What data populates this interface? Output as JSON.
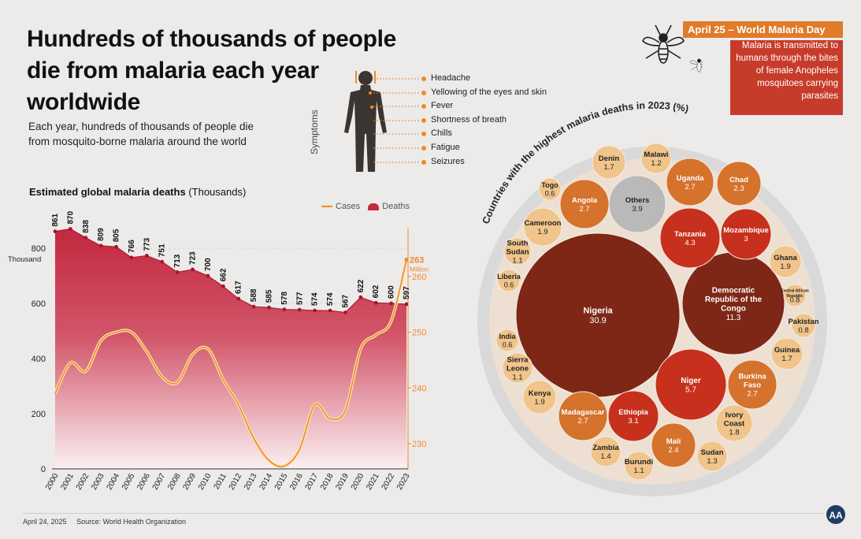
{
  "headline": "Hundreds of thousands of people die from malaria each year worldwide",
  "subhead": "Each year, hundreds of thousands of people die from mosquito-borne malaria around the world",
  "symptoms": {
    "title": "Symptoms",
    "items": [
      "Headache",
      "Yellowing of the eyes and skin",
      "Fever",
      "Shortness of breath",
      "Chills",
      "Fatigue",
      "Seizures"
    ]
  },
  "world_malaria_day": {
    "heading": "April 25 – World Malaria Day",
    "text": "Malaria is transmitted to humans through the bites of female Anopheles mosquitoes carrying parasites"
  },
  "footer": {
    "date": "April 24, 2025",
    "source": "Source: World Health Organization"
  },
  "logo_text": "AA",
  "colors": {
    "deaths": "#c3283f",
    "cases": "#ef8a2a",
    "bubble_dark": "#7e2716",
    "bubble_red": "#c7301d",
    "bubble_orange": "#d5722c",
    "bubble_light": "#f0c48a",
    "bubble_gray": "#b9b9b9",
    "box_red": "#c73b2a",
    "box_orange": "#e07b2a"
  },
  "chart_data": [
    {
      "type": "area",
      "title": "Estimated global malaria deaths",
      "title_unit": "(Thousands)",
      "legend": [
        "Cases",
        "Deaths"
      ],
      "x": [
        "2000",
        "2001",
        "2002",
        "2003",
        "2004",
        "2005",
        "2006",
        "2007",
        "2008",
        "2009",
        "2010",
        "2011",
        "2012",
        "2013",
        "2014",
        "2015",
        "2016",
        "2017",
        "2018",
        "2019",
        "2020",
        "2021",
        "2022",
        "2023"
      ],
      "y_left": {
        "label": "Thousand",
        "ticks": [
          0,
          200,
          400,
          600,
          800
        ],
        "range": [
          0,
          900
        ]
      },
      "y_right": {
        "unit_label": "Million",
        "ticks": [
          230,
          240,
          250,
          260
        ],
        "range": [
          225.5,
          270
        ]
      },
      "series": [
        {
          "name": "Deaths",
          "axis": "left",
          "values": [
            861,
            870,
            838,
            809,
            805,
            766,
            773,
            751,
            713,
            723,
            700,
            662,
            617,
            588,
            585,
            578,
            577,
            574,
            574,
            567,
            622,
            602,
            600,
            597
          ],
          "labels": [
            "861",
            "870",
            "838",
            "809",
            "805",
            "766",
            "773",
            "751",
            "713",
            "723",
            "700",
            "662",
            "617",
            "588",
            "585",
            "578",
            "577",
            "574",
            "574",
            "567",
            "622",
            "602",
            "600",
            "597"
          ]
        },
        {
          "name": "Cases",
          "axis": "right",
          "values": [
            239,
            244.5,
            243,
            248.5,
            250,
            250,
            246.5,
            242,
            241,
            246,
            247,
            241.5,
            237,
            231,
            227,
            226,
            229,
            237,
            234.5,
            236,
            247,
            249.5,
            252,
            263
          ],
          "end_label": "263",
          "end_unit": "Million"
        }
      ]
    },
    {
      "type": "bubble",
      "title": "Countries with the highest malaria deaths in 2023 (%)",
      "items": [
        {
          "name": "Nigeria",
          "value": 30.9,
          "label": "30.9",
          "tone": "dark"
        },
        {
          "name": "Democratic Republic of the Congo",
          "value": 11.3,
          "label": "11.3",
          "tone": "dark"
        },
        {
          "name": "Niger",
          "value": 5.7,
          "label": "5.7",
          "tone": "red"
        },
        {
          "name": "Tanzania",
          "value": 4.3,
          "label": "4.3",
          "tone": "red"
        },
        {
          "name": "Mozambique",
          "value": 3,
          "label": "3",
          "tone": "red"
        },
        {
          "name": "Ethiopia",
          "value": 3.1,
          "label": "3.1",
          "tone": "red"
        },
        {
          "name": "Others",
          "value": 3.9,
          "label": "3.9",
          "tone": "gray"
        },
        {
          "name": "Angola",
          "value": 2.7,
          "label": "2.7",
          "tone": "orange"
        },
        {
          "name": "Uganda",
          "value": 2.7,
          "label": "2.7",
          "tone": "orange"
        },
        {
          "name": "Chad",
          "value": 2.3,
          "label": "2.3",
          "tone": "orange"
        },
        {
          "name": "Burkina Faso",
          "value": 2.7,
          "label": "2.7",
          "tone": "orange"
        },
        {
          "name": "Madagascar",
          "value": 2.7,
          "label": "2.7",
          "tone": "orange"
        },
        {
          "name": "Mali",
          "value": 2.4,
          "label": "2.4",
          "tone": "orange"
        },
        {
          "name": "Denin",
          "value": 1.7,
          "label": "1.7",
          "tone": "light"
        },
        {
          "name": "Malawi",
          "value": 1.2,
          "label": "1.2",
          "tone": "light"
        },
        {
          "name": "Togo",
          "value": 0.6,
          "label": "0.6",
          "tone": "light"
        },
        {
          "name": "Cameroon",
          "value": 1.9,
          "label": "1.9",
          "tone": "light"
        },
        {
          "name": "South Sudan",
          "value": 1.1,
          "label": "1.1",
          "tone": "light"
        },
        {
          "name": "Liberia",
          "value": 0.6,
          "label": "0.6",
          "tone": "light"
        },
        {
          "name": "Ghana",
          "value": 1.9,
          "label": "1.9",
          "tone": "light"
        },
        {
          "name": "Central African Republic",
          "value": 0.8,
          "label": "0.8",
          "tone": "light"
        },
        {
          "name": "Pakistan",
          "value": 0.8,
          "label": "0.8",
          "tone": "light"
        },
        {
          "name": "Guinea",
          "value": 1.7,
          "label": "1.7",
          "tone": "light"
        },
        {
          "name": "India",
          "value": 0.6,
          "label": "0.6",
          "tone": "light"
        },
        {
          "name": "Sierra Leone",
          "value": 1.1,
          "label": "1.1",
          "tone": "light"
        },
        {
          "name": "Kenya",
          "value": 1.9,
          "label": "1.9",
          "tone": "light"
        },
        {
          "name": "Ivory Coast",
          "value": 1.8,
          "label": "1.8",
          "tone": "light"
        },
        {
          "name": "Zambia",
          "value": 1.4,
          "label": "1.4",
          "tone": "light"
        },
        {
          "name": "Burundi",
          "value": 1.1,
          "label": "1.1",
          "tone": "light"
        },
        {
          "name": "Sudan",
          "value": 1.3,
          "label": "1.3",
          "tone": "light"
        }
      ]
    }
  ]
}
